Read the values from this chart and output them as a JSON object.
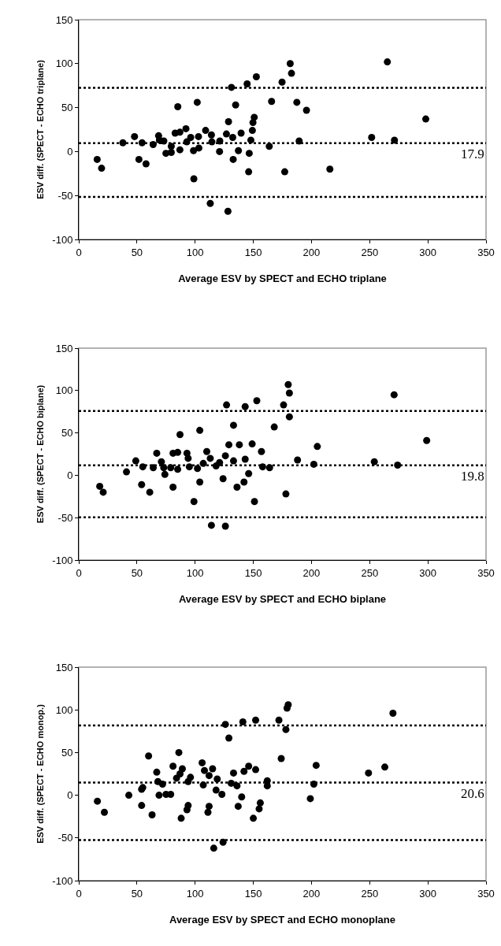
{
  "chart_data": [
    {
      "type": "scatter",
      "xlabel": "Average ESV by SPECT and ECHO triplane",
      "ylabel": "ESV diff. (SPECT - ECHO triplane)",
      "xlim": [
        0,
        350
      ],
      "ylim": [
        -100,
        150
      ],
      "xticks": [
        0,
        50,
        100,
        150,
        200,
        250,
        300,
        350
      ],
      "yticks": [
        -100,
        -50,
        0,
        50,
        100,
        150
      ],
      "grid": false,
      "marker": "circle",
      "series": [
        {
          "color": "#000000",
          "x": [
            15.8,
            19.6,
            37.9,
            47.9,
            51.7,
            54.4,
            57.8,
            63.9,
            68.6,
            69.3,
            73.1,
            74.9,
            79.5,
            79.5,
            82.8,
            85.1,
            86.9,
            86.9,
            92.1,
            92.8,
            96.2,
            98.6,
            98.9,
            101.8,
            102.9,
            103.2,
            109,
            113,
            114,
            114.4,
            121,
            121.2,
            126.9,
            128.2,
            128.7,
            131.2,
            132.3,
            132.7,
            134.8,
            137.2,
            139.5,
            144.7,
            146,
            146.5,
            147.9,
            149.2,
            149.7,
            150.8,
            152.6,
            163.7,
            165.7,
            174.7,
            177,
            181.7,
            182.8,
            187.4,
            189.4,
            195.7,
            215.8,
            251.7,
            265.2,
            271.3,
            298.2
          ],
          "values": [
            -9,
            -19,
            10,
            17,
            -9,
            10,
            -14,
            8,
            18,
            13,
            12,
            -2,
            6,
            -1,
            21,
            51,
            2,
            22,
            26,
            11,
            16,
            1,
            -31,
            56,
            17,
            4,
            24,
            -59,
            19,
            11,
            0,
            12,
            20,
            -68,
            34,
            73,
            16,
            -9,
            53,
            1,
            21,
            77,
            -23,
            -2,
            13,
            24,
            33,
            39,
            85,
            6,
            57,
            79,
            -23,
            100,
            89,
            56,
            12,
            47,
            -20,
            16,
            102,
            13,
            37
          ]
        }
      ],
      "annotations": [
        "17.9"
      ],
      "ref_lines": [
        {
          "axis": "y",
          "value": 72.5,
          "color": "#000000",
          "line_style": "dotted"
        },
        {
          "axis": "y",
          "value": 9.6,
          "color": "#000000",
          "line_style": "dotted"
        },
        {
          "axis": "y",
          "value": -51.6,
          "color": "#000000",
          "line_style": "dotted"
        }
      ]
    },
    {
      "type": "scatter",
      "xlabel": "Average ESV by SPECT and ECHO biplane",
      "ylabel": "ESV diff. (SPECT - ECHO biplane)",
      "xlim": [
        0,
        350
      ],
      "ylim": [
        -100,
        150
      ],
      "xticks": [
        0,
        50,
        100,
        150,
        200,
        250,
        300,
        350
      ],
      "yticks": [
        -100,
        -50,
        0,
        50,
        100,
        150
      ],
      "grid": false,
      "marker": "circle",
      "series": [
        {
          "color": "#000000",
          "x": [
            18,
            21,
            41,
            49,
            54,
            55,
            61,
            64,
            67,
            71,
            73,
            74,
            79,
            81,
            81,
            85,
            85,
            87,
            93,
            94,
            95,
            99,
            102,
            104,
            104,
            107,
            110,
            113,
            114,
            118,
            121,
            124,
            126,
            126,
            127,
            129,
            133,
            133,
            136,
            138,
            142,
            143,
            143,
            146,
            149,
            151,
            153,
            157,
            158,
            164,
            168,
            176,
            178,
            180,
            181,
            181,
            188,
            202,
            205,
            254,
            271,
            274,
            299
          ],
          "values": [
            -13,
            -20,
            4,
            17,
            -11,
            10,
            -20,
            9,
            26,
            16,
            9,
            1,
            9,
            -14,
            26,
            27,
            7,
            48,
            26,
            20,
            10,
            -31,
            8,
            53,
            -8,
            14,
            28,
            20,
            -59,
            11,
            15,
            -4,
            -60,
            23,
            83,
            36,
            17,
            59,
            -14,
            36,
            -8,
            19,
            81,
            2,
            37,
            -31,
            88,
            28,
            10,
            9,
            57,
            83,
            -22,
            107,
            97,
            69,
            18,
            13,
            34,
            16,
            95,
            12,
            41
          ]
        }
      ],
      "annotations": [
        "19.8"
      ],
      "ref_lines": [
        {
          "axis": "y",
          "value": 75.9,
          "color": "#000000",
          "line_style": "dotted"
        },
        {
          "axis": "y",
          "value": 11.8,
          "color": "#000000",
          "line_style": "dotted"
        },
        {
          "axis": "y",
          "value": -49.5,
          "color": "#000000",
          "line_style": "dotted"
        }
      ]
    },
    {
      "type": "scatter",
      "xlabel": "Average ESV by SPECT and ECHO monoplane",
      "ylabel": "ESV diff. (SPECT - ECHO monop.)",
      "xlim": [
        0,
        350
      ],
      "ylim": [
        -100,
        150
      ],
      "xticks": [
        0,
        50,
        100,
        150,
        200,
        250,
        300,
        350
      ],
      "yticks": [
        -100,
        -50,
        0,
        50,
        100,
        150
      ],
      "grid": false,
      "marker": "circle",
      "series": [
        {
          "color": "#000000",
          "x": [
            16,
            22,
            43,
            54,
            55,
            54,
            60,
            63,
            67,
            68,
            72,
            69,
            75,
            79,
            81,
            84,
            86,
            87,
            89,
            88,
            93,
            94,
            94,
            96,
            106,
            107,
            108,
            111,
            112,
            112,
            115,
            116,
            118,
            119,
            123,
            124,
            126,
            129,
            131,
            133,
            136,
            137,
            140,
            141,
            142,
            146,
            150,
            152,
            152,
            155,
            156,
            162,
            162,
            172,
            174,
            178,
            179,
            180,
            199,
            202,
            204,
            249,
            263,
            270
          ],
          "values": [
            -7,
            -20,
            0,
            7,
            9,
            -12,
            46,
            -23,
            27,
            16,
            13,
            0,
            1,
            1,
            34,
            20,
            50,
            25,
            31,
            -27,
            -17,
            -12,
            16,
            21,
            38,
            12,
            29,
            -20,
            -13,
            23,
            31,
            -62,
            6,
            19,
            1,
            -55,
            83,
            67,
            14,
            26,
            11,
            -13,
            -2,
            86,
            28,
            34,
            -27,
            30,
            88,
            -16,
            -9,
            17,
            11,
            88,
            43,
            77,
            102,
            106,
            -4,
            13,
            35,
            26,
            33,
            96
          ]
        }
      ],
      "annotations": [
        "20.6"
      ],
      "ref_lines": [
        {
          "axis": "y",
          "value": 81.8,
          "color": "#000000",
          "line_style": "dotted"
        },
        {
          "axis": "y",
          "value": 14.8,
          "color": "#000000",
          "line_style": "dotted"
        },
        {
          "axis": "y",
          "value": -52.6,
          "color": "#000000",
          "line_style": "dotted"
        }
      ]
    }
  ]
}
